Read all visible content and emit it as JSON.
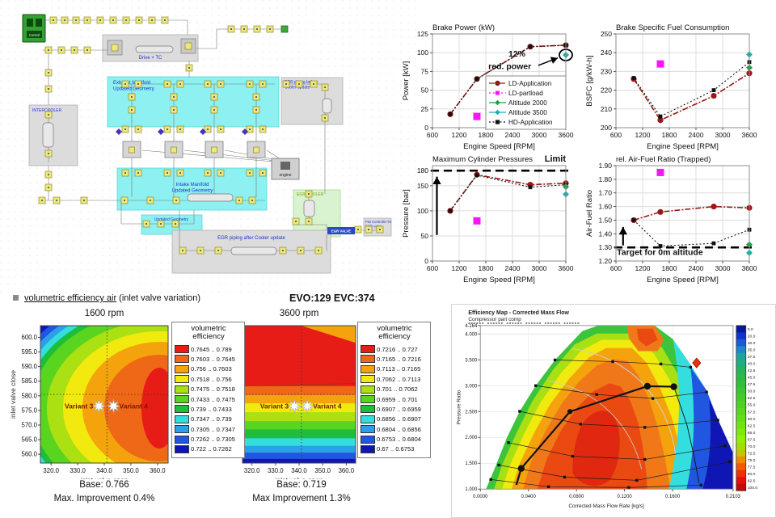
{
  "section_header": {
    "title": "volumetric efficiency air",
    "suffix": " (inlet valve variation)",
    "evo_evc": "EVO:129 EVC:374"
  },
  "schematic": {
    "labels": {
      "control": "Control",
      "drive_tc": "Drive + TC",
      "intercooler": "INTERCOOLER",
      "exhaust": "Exhaust Manifold Updated Geometry",
      "egr_before": "EGR piping before Cooler update",
      "intake": "Intake Manifold Updated Geometry",
      "updated_geo": "Updated Geometry",
      "egr_cooler": "EGR COOLER",
      "egr_after": "EGR piping after Cooler update",
      "pid": "PID Controller for EGR valve",
      "egr_valve": "EGR VALVE",
      "engine": "engine"
    }
  },
  "chart_data": [
    {
      "id": "brake-power",
      "type": "line",
      "title": "Brake Power (kW)",
      "xlabel": "Engine Speed [RPM]",
      "ylabel": "Power [kW]",
      "xlim": [
        600,
        3600
      ],
      "ylim": [
        0,
        125
      ],
      "xticks": [
        600,
        1200,
        1800,
        2400,
        3000,
        3600
      ],
      "xtick_labels": [
        "600",
        "1200",
        "1800",
        "2400",
        "3000",
        "3600"
      ],
      "yticks": [
        0,
        25,
        50,
        75,
        100,
        125
      ],
      "ytick_labels": [
        "0",
        "25",
        "50",
        "75",
        "100",
        "125"
      ],
      "series": [
        {
          "name": "LD-Application",
          "color": "#9b1717",
          "dash": "7 2 2 2",
          "lw": 1.6,
          "marker": "circle",
          "ms": 3.6,
          "points": [
            [
              1000,
              18
            ],
            [
              1600,
              65
            ],
            [
              2800,
              108
            ],
            [
              3600,
              110
            ]
          ]
        },
        {
          "name": "HD-Application",
          "color": "#111111",
          "dash": "2 2.5",
          "lw": 1.1,
          "marker": "square",
          "ms": 2.4,
          "points": [
            [
              1000,
              18
            ],
            [
              1600,
              65
            ],
            [
              2800,
              108
            ],
            [
              3600,
              110
            ]
          ]
        },
        {
          "name": "LD-partload",
          "color": "#f816f8",
          "marker": "square",
          "ms": 4.5,
          "noline": true,
          "points": [
            [
              1600,
              15
            ]
          ]
        },
        {
          "name": "Altitude 3500",
          "color": "#17b0b0",
          "marker": "diamond",
          "ms": 4,
          "noline": true,
          "points": [
            [
              3600,
              97
            ]
          ]
        }
      ],
      "legend": {
        "entries": [
          {
            "label": "LD-Application",
            "color": "#9b1717",
            "dash": "7 2 2 2",
            "marker": "circle"
          },
          {
            "label": "LD-partload",
            "color": "#f816f8",
            "dash": "2 3",
            "marker": "square"
          },
          {
            "label": "Altitude 2000",
            "color": "#1f9e3e",
            "marker": "diamond"
          },
          {
            "label": "Altitude 3500",
            "color": "#17b0b0",
            "marker": "diamond"
          },
          {
            "label": "HD-Application",
            "color": "#111111",
            "dash": "2 2.5",
            "marker": "square"
          }
        ]
      },
      "annotations": [
        {
          "type": "ellipse",
          "x": 3600,
          "y": 97,
          "rx": 8,
          "ry": 7
        },
        {
          "type": "text",
          "x": 2500,
          "y": 95,
          "text": "12%",
          "bold": true,
          "size": 10.5
        },
        {
          "type": "text",
          "x": 2340,
          "y": 78,
          "text": "red. power",
          "bold": true,
          "size": 10.5
        },
        {
          "type": "arrow",
          "x1": 2980,
          "y1": 83,
          "x2": 3420,
          "y2": 93,
          "lw": 1.5
        }
      ]
    },
    {
      "id": "bsfc",
      "type": "line",
      "title": "Brake Specific Fuel Consumption",
      "xlabel": "Engine Speed [RPM]",
      "ylabel": "BSFC [g/kW-h]",
      "xlim": [
        600,
        3600
      ],
      "ylim": [
        200,
        250
      ],
      "xticks": [
        600,
        1200,
        1800,
        2400,
        3000,
        3600
      ],
      "xtick_labels": [
        "600",
        "1200",
        "1800",
        "2400",
        "3000",
        "3600"
      ],
      "yticks": [
        200,
        210,
        220,
        230,
        240,
        250
      ],
      "ytick_labels": [
        "200",
        "210",
        "220",
        "230",
        "240",
        "250"
      ],
      "series": [
        {
          "name": "LD-Application",
          "color": "#9b1717",
          "dash": "7 2 2 2",
          "lw": 1.6,
          "marker": "circle",
          "ms": 3.6,
          "points": [
            [
              1000,
              226
            ],
            [
              1600,
              204
            ],
            [
              2800,
              217
            ],
            [
              3600,
              229
            ]
          ]
        },
        {
          "name": "HD-Application",
          "color": "#111111",
          "dash": "2 2.5",
          "lw": 1.1,
          "marker": "square",
          "ms": 2.4,
          "points": [
            [
              1000,
              226.5
            ],
            [
              1600,
              206
            ],
            [
              2800,
              220
            ],
            [
              3600,
              235
            ]
          ]
        },
        {
          "name": "LD-partload",
          "color": "#f816f8",
          "marker": "square",
          "ms": 4.5,
          "noline": true,
          "points": [
            [
              1600,
              234
            ]
          ]
        },
        {
          "name": "Altitude 2000",
          "color": "#1f9e3e",
          "marker": "diamond",
          "ms": 4,
          "noline": true,
          "points": [
            [
              3600,
              232
            ]
          ]
        },
        {
          "name": "Altitude 3500",
          "color": "#17b0b0",
          "marker": "diamond",
          "ms": 4,
          "noline": true,
          "points": [
            [
              3600,
              239
            ]
          ]
        }
      ],
      "annotations": []
    },
    {
      "id": "max-cylinder-pressure",
      "type": "line",
      "title": "Maximum Cylinder Pressures",
      "title2": "Limit",
      "xlabel": "Engine Speed [RPM]",
      "ylabel": "Pressure [bar]",
      "xlim": [
        600,
        3600
      ],
      "ylim": [
        0,
        190
      ],
      "xticks": [
        600,
        1200,
        1800,
        2400,
        3000,
        3600
      ],
      "xtick_labels": [
        "600",
        "1200",
        "1800",
        "2400",
        "3000",
        "3600"
      ],
      "yticks": [
        0,
        50,
        100,
        150,
        180
      ],
      "ytick_labels": [
        "0",
        "50",
        "100",
        "150",
        "180"
      ],
      "hlines": [
        {
          "y": 180,
          "dash": "10 6",
          "lw": 2.6,
          "color": "#000000"
        }
      ],
      "series": [
        {
          "name": "LD-Application",
          "color": "#9b1717",
          "dash": "7 2 2 2",
          "lw": 1.6,
          "marker": "circle",
          "ms": 3.6,
          "points": [
            [
              1000,
              100
            ],
            [
              1600,
              172
            ],
            [
              2800,
              152
            ],
            [
              3600,
              155
            ]
          ]
        },
        {
          "name": "HD-Application",
          "color": "#111111",
          "dash": "2 2.5",
          "lw": 1.1,
          "marker": "square",
          "ms": 2.4,
          "points": [
            [
              1000,
              100
            ],
            [
              1600,
              171
            ],
            [
              2800,
              147
            ],
            [
              3600,
              152
            ]
          ]
        },
        {
          "name": "LD-partload",
          "color": "#f816f8",
          "marker": "square",
          "ms": 4.5,
          "noline": true,
          "points": [
            [
              1600,
              80
            ]
          ]
        },
        {
          "name": "Altitude 2000",
          "color": "#1f9e3e",
          "marker": "diamond",
          "ms": 4,
          "noline": true,
          "points": [
            [
              3600,
              148
            ]
          ]
        },
        {
          "name": "Altitude 3500",
          "color": "#17b0b0",
          "marker": "diamond",
          "ms": 4,
          "noline": true,
          "points": [
            [
              3600,
              133
            ]
          ]
        }
      ],
      "annotations": [
        {
          "type": "arrow",
          "x1": 700,
          "y1": 52,
          "x2": 700,
          "y2": 168,
          "lw": 2.2
        }
      ]
    },
    {
      "id": "air-fuel-ratio",
      "type": "line",
      "title": "rel. Air-Fuel Ratio (Trapped)",
      "xlabel": "Engine Speed [RPM]",
      "ylabel": "Air-Fuel Ratio",
      "xlim": [
        600,
        3600
      ],
      "ylim": [
        1.2,
        1.9
      ],
      "xticks": [
        600,
        1200,
        1800,
        2400,
        3000,
        3600
      ],
      "xtick_labels": [
        "600",
        "1200",
        "1800",
        "2400",
        "3000",
        "3600"
      ],
      "yticks": [
        1.2,
        1.3,
        1.4,
        1.5,
        1.6,
        1.7,
        1.8,
        1.9
      ],
      "ytick_labels": [
        "1.20",
        "1.30",
        "1.40",
        "1.50",
        "1.60",
        "1.70",
        "1.80",
        "1.90"
      ],
      "hlines": [
        {
          "y": 1.3,
          "dash": "10 6",
          "lw": 2.6,
          "color": "#000000"
        }
      ],
      "series": [
        {
          "name": "LD-Application",
          "color": "#9b1717",
          "dash": "7 2 2 2",
          "lw": 1.6,
          "marker": "circle",
          "ms": 3.6,
          "points": [
            [
              1000,
              1.5
            ],
            [
              1600,
              1.56
            ],
            [
              2800,
              1.6
            ],
            [
              3600,
              1.59
            ]
          ]
        },
        {
          "name": "HD-Application",
          "color": "#111111",
          "dash": "2 2.5",
          "lw": 1.1,
          "marker": "square",
          "ms": 2.4,
          "points": [
            [
              1000,
              1.5
            ],
            [
              1600,
              1.31
            ],
            [
              2800,
              1.33
            ],
            [
              3600,
              1.43
            ]
          ]
        },
        {
          "name": "LD-partload",
          "color": "#f816f8",
          "marker": "square",
          "ms": 4.5,
          "noline": true,
          "points": [
            [
              1600,
              1.85
            ]
          ]
        },
        {
          "name": "Altitude 2000",
          "color": "#1f9e3e",
          "marker": "diamond",
          "ms": 4,
          "noline": true,
          "points": [
            [
              3600,
              1.32
            ]
          ]
        },
        {
          "name": "Altitude 3500",
          "color": "#17b0b0",
          "marker": "diamond",
          "ms": 4,
          "noline": true,
          "points": [
            [
              3600,
              1.26
            ]
          ]
        }
      ],
      "annotations": [
        {
          "type": "text",
          "x": 620,
          "y": 1.245,
          "text": "Target for 0m altitude",
          "bold": true,
          "size": 10.5,
          "anchor": "start"
        },
        {
          "type": "arrow",
          "x1": 760,
          "y1": 1.315,
          "x2": 760,
          "y2": 1.45,
          "lw": 2.2
        }
      ]
    },
    {
      "id": "volumetric-efficiency-1600",
      "type": "contour",
      "title": "1600 rpm",
      "xlabel": "inlet valve open",
      "ylabel": "inlet valve close",
      "xlim": [
        316,
        364
      ],
      "ylim": [
        557,
        604
      ],
      "xticks": [
        320,
        330,
        340,
        350,
        360
      ],
      "xtick_labels": [
        "320.0",
        "330.0",
        "340.0",
        "350.0",
        "360.0"
      ],
      "yticks": [
        600,
        595,
        590,
        585,
        580,
        575,
        570,
        565,
        560
      ],
      "ytick_labels": [
        "600.0",
        "595.0",
        "590.0",
        "585.0",
        "580.0",
        "575.0",
        "570.0",
        "565.0",
        "560.0"
      ],
      "legend_title": "volumetric efficiency",
      "bands": [
        {
          "color": "#e81c16",
          "label": "0.7645 .. 0.789"
        },
        {
          "color": "#ef6817",
          "label": "0.7603 .. 0.7645"
        },
        {
          "color": "#f5a30d",
          "label": "0.756 .. 0.7603"
        },
        {
          "color": "#f2ea0f",
          "label": "0.7518 .. 0.756"
        },
        {
          "color": "#abe113",
          "label": "0.7475 .. 0.7518"
        },
        {
          "color": "#59d41f",
          "label": "0.7433 .. 0.7475"
        },
        {
          "color": "#1ebe3c",
          "label": "0.739 .. 0.7433"
        },
        {
          "color": "#35dede",
          "label": "0.7347 .. 0.739"
        },
        {
          "color": "#2b9fe8",
          "label": "0.7305 .. 0.7347"
        },
        {
          "color": "#2156e0",
          "label": "0.7262 .. 0.7305"
        },
        {
          "color": "#1016b4",
          "label": "0.722 .. 0.7262"
        }
      ],
      "crosshair": {
        "x": 341,
        "y": 580.5
      },
      "variants": [
        {
          "label": "Variant 3",
          "x": 338,
          "y": 576.5
        },
        {
          "label": "Variant 4",
          "x": 343.5,
          "y": 576.5
        }
      ],
      "base_label": "Base: 0.766",
      "improvement_label": "Max. Improvement 0.4%"
    },
    {
      "id": "volumetric-efficiency-3600",
      "type": "contour",
      "title": "3600 rpm",
      "xlabel": "inlet valve open",
      "ylabel": "",
      "xlim": [
        316,
        364
      ],
      "ylim": [
        557,
        604
      ],
      "xticks": [
        320,
        330,
        340,
        350,
        360
      ],
      "xtick_labels": [
        "320.0",
        "330.0",
        "340.0",
        "350.0",
        "360.0"
      ],
      "yticks": [
        600,
        595,
        590,
        585,
        580,
        575,
        570,
        565,
        560
      ],
      "ytick_labels": [],
      "legend_title": "volumetric efficiency",
      "bands": [
        {
          "color": "#e81c16",
          "label": "0.7216 .. 0.727"
        },
        {
          "color": "#ef6817",
          "label": "0.7165 .. 0.7216"
        },
        {
          "color": "#f5a30d",
          "label": "0.7113 .. 0.7165"
        },
        {
          "color": "#f2ea0f",
          "label": "0.7062 .. 0.7113"
        },
        {
          "color": "#abe113",
          "label": "0.701 .. 0.7062"
        },
        {
          "color": "#59d41f",
          "label": "0.6959 .. 0.701"
        },
        {
          "color": "#1ebe3c",
          "label": "0.6907 .. 0.6959"
        },
        {
          "color": "#35dede",
          "label": "0.6856 .. 0.6907"
        },
        {
          "color": "#2b9fe8",
          "label": "0.6804 .. 0.6856"
        },
        {
          "color": "#2156e0",
          "label": "0.6753 .. 0.6804"
        },
        {
          "color": "#1016b4",
          "label": "0.67 .. 0.6753"
        }
      ],
      "crosshair": {
        "x": 341,
        "y": 580.5
      },
      "variants": [
        {
          "label": "Variant 3",
          "x": 338,
          "y": 576.5
        },
        {
          "label": "Variant 4",
          "x": 343.5,
          "y": 576.5
        }
      ],
      "base_label": "Base: 0.719",
      "improvement_label": "Max Improvement 1.3%"
    },
    {
      "id": "compressor-efficiency-map",
      "type": "heatmap",
      "title": "Efficiency Map - Corrected Mass Flow",
      "subtitle": "Compressor part comp",
      "xlabel": "Corrected Mass Flow Rate [kg/s]",
      "ylabel": "Pressure Ratio",
      "xlim": [
        0,
        0.2103
      ],
      "ylim": [
        1.0,
        4.164
      ],
      "xticks": [
        0,
        0.04,
        0.08,
        0.12,
        0.16,
        0.2103
      ],
      "xtick_labels": [
        "0.0000",
        "0.0400",
        "0.0800",
        "0.1200",
        "0.1600",
        "0.2103"
      ],
      "yticks": [
        1.0,
        1.5,
        2.0,
        2.5,
        3.0,
        3.5,
        4.0,
        4.164
      ],
      "ytick_labels": [
        "1.000",
        "1.500",
        "2.000",
        "2.500",
        "3.000",
        "3.500",
        "4.000",
        "4.164"
      ],
      "operating_line": [
        [
          0.03,
          1.08
        ],
        [
          0.034,
          1.4
        ],
        [
          0.0746,
          2.5
        ],
        [
          0.139,
          2.99
        ],
        [
          0.161,
          2.98
        ]
      ],
      "operating_line_tail": [
        [
          0.161,
          2.98
        ],
        [
          0.172,
          2.24
        ],
        [
          0.178,
          1.62
        ],
        [
          0.182,
          1.12
        ]
      ],
      "marker_point": {
        "x": 0.18,
        "y": 3.44,
        "color": "#f03000"
      },
      "colorbar": {
        "labels": [
          "0.0",
          "20.0",
          "30.0",
          "35.0",
          "37.5",
          "40.0",
          "42.5",
          "45.0",
          "47.5",
          "50.0",
          "52.5",
          "55.0",
          "57.5",
          "60.0",
          "62.5",
          "65.0",
          "67.5",
          "70.0",
          "72.5",
          "75.0",
          "77.5",
          "80.0",
          "82.5",
          "100.0"
        ],
        "colors": [
          "#0a1796",
          "#1133cc",
          "#1d59d6",
          "#1e86c8",
          "#1fa39b",
          "#21ad7d",
          "#26b35e",
          "#2cb948",
          "#33bf3a",
          "#3bc532",
          "#44cb2b",
          "#4ed124",
          "#59d71e",
          "#65dd18",
          "#72e312",
          "#80e90c",
          "#90ef07",
          "#a2de05",
          "#c2c404",
          "#ef8c00",
          "#f25c00",
          "#ee3300",
          "#e01111",
          "#c40a0a"
        ]
      }
    }
  ]
}
